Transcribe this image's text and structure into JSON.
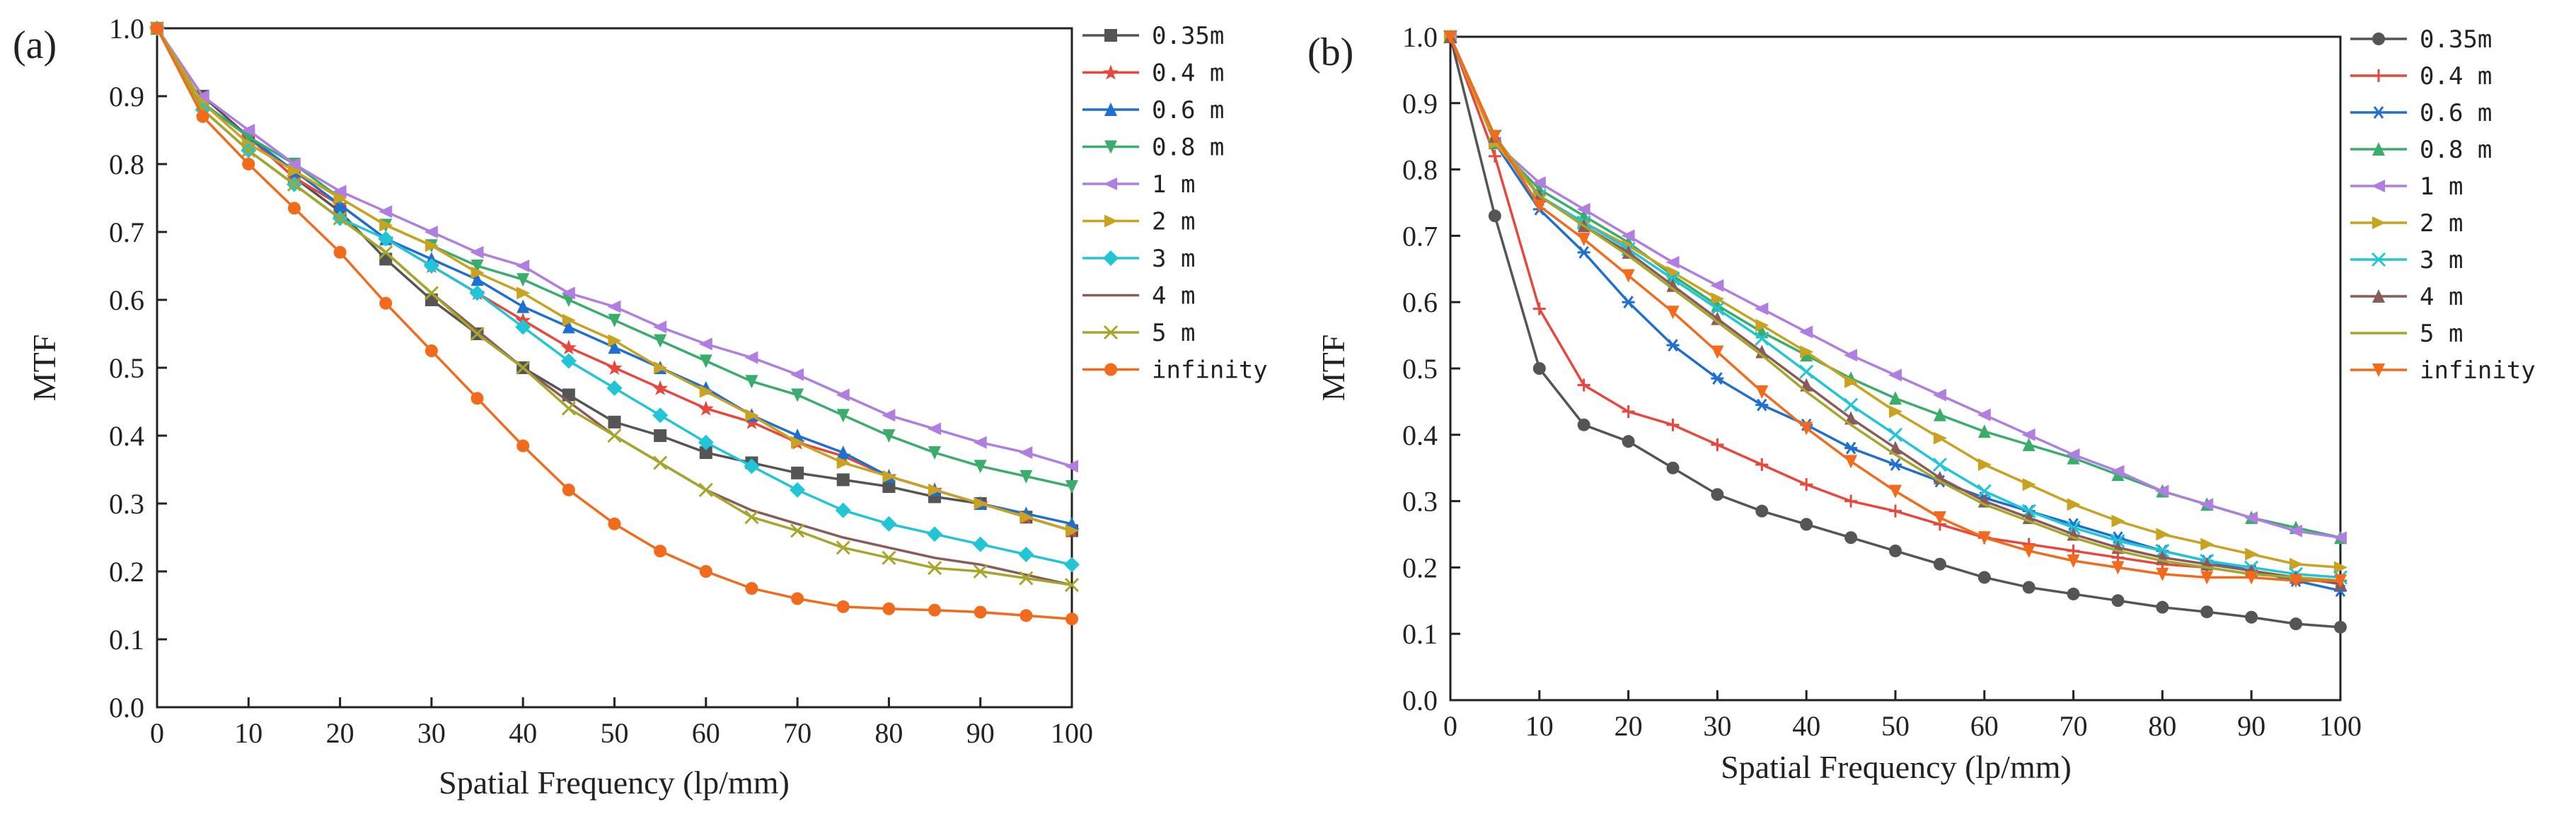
{
  "chart_data": [
    {
      "panel_label": "(a)",
      "type": "line",
      "title": "",
      "xlabel": "Spatial Frequency (lp/mm)",
      "ylabel": "MTF",
      "xlim": [
        0,
        100
      ],
      "ylim": [
        0,
        1
      ],
      "xticks": [
        "0",
        "10",
        "20",
        "30",
        "40",
        "50",
        "60",
        "70",
        "80",
        "90",
        "100"
      ],
      "yticks": [
        "0.0",
        "0.1",
        "0.2",
        "0.3",
        "0.4",
        "0.5",
        "0.6",
        "0.7",
        "0.8",
        "0.9",
        "1.0"
      ],
      "grid": false,
      "legend_position": "outside-right",
      "x": [
        0,
        5,
        10,
        15,
        20,
        25,
        30,
        35,
        40,
        45,
        50,
        55,
        60,
        65,
        70,
        75,
        80,
        85,
        90,
        95,
        100
      ],
      "series": [
        {
          "name": "0.35m",
          "color": "#555555",
          "marker": "square",
          "values": [
            1.0,
            0.9,
            0.84,
            0.78,
            0.73,
            0.66,
            0.6,
            0.55,
            0.5,
            0.46,
            0.42,
            0.4,
            0.375,
            0.36,
            0.345,
            0.335,
            0.325,
            0.31,
            0.3,
            0.28,
            0.26
          ]
        },
        {
          "name": "0.4 m",
          "color": "#e8473e",
          "marker": "star",
          "values": [
            1.0,
            0.89,
            0.84,
            0.78,
            0.74,
            0.69,
            0.65,
            0.61,
            0.57,
            0.53,
            0.5,
            0.47,
            0.44,
            0.42,
            0.39,
            0.37,
            0.34,
            0.32,
            0.3,
            0.28,
            0.26
          ]
        },
        {
          "name": "0.6 m",
          "color": "#1f6fd1",
          "marker": "triangle-up",
          "values": [
            1.0,
            0.89,
            0.84,
            0.79,
            0.74,
            0.69,
            0.66,
            0.63,
            0.59,
            0.56,
            0.53,
            0.5,
            0.47,
            0.43,
            0.4,
            0.375,
            0.34,
            0.32,
            0.3,
            0.285,
            0.27
          ]
        },
        {
          "name": "0.8 m",
          "color": "#3aad6c",
          "marker": "triangle-down",
          "values": [
            1.0,
            0.89,
            0.84,
            0.8,
            0.75,
            0.71,
            0.68,
            0.65,
            0.63,
            0.6,
            0.57,
            0.54,
            0.51,
            0.48,
            0.46,
            0.43,
            0.4,
            0.375,
            0.355,
            0.34,
            0.325
          ]
        },
        {
          "name": "1 m",
          "color": "#b07ee0",
          "marker": "triangle-left",
          "values": [
            1.0,
            0.9,
            0.85,
            0.8,
            0.76,
            0.73,
            0.7,
            0.67,
            0.65,
            0.61,
            0.59,
            0.56,
            0.535,
            0.515,
            0.49,
            0.46,
            0.43,
            0.41,
            0.39,
            0.375,
            0.355
          ]
        },
        {
          "name": "2 m",
          "color": "#c9a21f",
          "marker": "triangle-right",
          "values": [
            1.0,
            0.89,
            0.83,
            0.79,
            0.75,
            0.71,
            0.68,
            0.64,
            0.61,
            0.57,
            0.54,
            0.5,
            0.465,
            0.43,
            0.39,
            0.36,
            0.34,
            0.32,
            0.3,
            0.28,
            0.26
          ]
        },
        {
          "name": "3 m",
          "color": "#22c5d6",
          "marker": "diamond",
          "values": [
            1.0,
            0.88,
            0.82,
            0.77,
            0.72,
            0.69,
            0.65,
            0.61,
            0.56,
            0.51,
            0.47,
            0.43,
            0.39,
            0.355,
            0.32,
            0.29,
            0.27,
            0.255,
            0.24,
            0.225,
            0.21
          ]
        },
        {
          "name": "4 m",
          "color": "#8b5a5a",
          "marker": "none",
          "values": [
            1.0,
            0.88,
            0.82,
            0.77,
            0.72,
            0.67,
            0.61,
            0.555,
            0.5,
            0.45,
            0.4,
            0.36,
            0.32,
            0.29,
            0.27,
            0.25,
            0.235,
            0.22,
            0.21,
            0.195,
            0.18
          ]
        },
        {
          "name": "5 m",
          "color": "#a6a62a",
          "marker": "x",
          "values": [
            1.0,
            0.88,
            0.82,
            0.77,
            0.72,
            0.67,
            0.61,
            0.55,
            0.5,
            0.44,
            0.4,
            0.36,
            0.32,
            0.28,
            0.26,
            0.235,
            0.22,
            0.205,
            0.2,
            0.19,
            0.18
          ]
        },
        {
          "name": "infinity",
          "color": "#f26b1d",
          "marker": "circle",
          "values": [
            1.0,
            0.87,
            0.8,
            0.735,
            0.67,
            0.595,
            0.525,
            0.455,
            0.385,
            0.32,
            0.27,
            0.23,
            0.2,
            0.175,
            0.16,
            0.148,
            0.145,
            0.143,
            0.14,
            0.135,
            0.13
          ]
        }
      ]
    },
    {
      "panel_label": "(b)",
      "type": "line",
      "title": "",
      "xlabel": "Spatial Frequency (lp/mm)",
      "ylabel": "MTF",
      "xlim": [
        0,
        100
      ],
      "ylim": [
        0,
        1
      ],
      "xticks": [
        "0",
        "10",
        "20",
        "30",
        "40",
        "50",
        "60",
        "70",
        "80",
        "90",
        "100"
      ],
      "yticks": [
        "0.0",
        "0.1",
        "0.2",
        "0.3",
        "0.4",
        "0.5",
        "0.6",
        "0.7",
        "0.8",
        "0.9",
        "1.0"
      ],
      "grid": false,
      "legend_position": "outside-right",
      "x": [
        0,
        5,
        10,
        15,
        20,
        25,
        30,
        35,
        40,
        45,
        50,
        55,
        60,
        65,
        70,
        75,
        80,
        85,
        90,
        95,
        100
      ],
      "series": [
        {
          "name": "0.35m",
          "color": "#555555",
          "marker": "circle",
          "values": [
            1.0,
            0.73,
            0.5,
            0.415,
            0.39,
            0.35,
            0.31,
            0.285,
            0.265,
            0.245,
            0.225,
            0.205,
            0.185,
            0.17,
            0.16,
            0.15,
            0.14,
            0.133,
            0.125,
            0.115,
            0.11
          ]
        },
        {
          "name": "0.4 m",
          "color": "#e8473e",
          "marker": "plus",
          "values": [
            1.0,
            0.82,
            0.59,
            0.475,
            0.435,
            0.415,
            0.385,
            0.355,
            0.325,
            0.3,
            0.285,
            0.265,
            0.245,
            0.235,
            0.225,
            0.215,
            0.205,
            0.2,
            0.19,
            0.185,
            0.18
          ]
        },
        {
          "name": "0.6 m",
          "color": "#1f6fd1",
          "marker": "asterisk",
          "values": [
            1.0,
            0.84,
            0.74,
            0.675,
            0.6,
            0.535,
            0.485,
            0.445,
            0.415,
            0.38,
            0.355,
            0.33,
            0.305,
            0.285,
            0.265,
            0.245,
            0.225,
            0.21,
            0.195,
            0.18,
            0.165
          ]
        },
        {
          "name": "0.8 m",
          "color": "#3aad6c",
          "marker": "triangle-up",
          "values": [
            1.0,
            0.84,
            0.77,
            0.73,
            0.69,
            0.64,
            0.595,
            0.555,
            0.52,
            0.485,
            0.455,
            0.43,
            0.405,
            0.385,
            0.365,
            0.34,
            0.315,
            0.295,
            0.275,
            0.26,
            0.245
          ]
        },
        {
          "name": "1 m",
          "color": "#b07ee0",
          "marker": "triangle-left",
          "values": [
            1.0,
            0.84,
            0.78,
            0.74,
            0.7,
            0.66,
            0.625,
            0.59,
            0.555,
            0.52,
            0.49,
            0.46,
            0.43,
            0.4,
            0.37,
            0.345,
            0.315,
            0.295,
            0.275,
            0.255,
            0.245
          ]
        },
        {
          "name": "2 m",
          "color": "#c9a21f",
          "marker": "triangle-right",
          "values": [
            1.0,
            0.84,
            0.76,
            0.72,
            0.685,
            0.645,
            0.605,
            0.565,
            0.525,
            0.48,
            0.435,
            0.395,
            0.355,
            0.325,
            0.295,
            0.27,
            0.25,
            0.235,
            0.22,
            0.205,
            0.2
          ]
        },
        {
          "name": "3 m",
          "color": "#22c5d6",
          "marker": "x",
          "values": [
            1.0,
            0.85,
            0.76,
            0.72,
            0.68,
            0.635,
            0.59,
            0.545,
            0.495,
            0.445,
            0.4,
            0.355,
            0.315,
            0.285,
            0.26,
            0.24,
            0.225,
            0.21,
            0.2,
            0.19,
            0.185
          ]
        },
        {
          "name": "4 m",
          "color": "#8b5a5a",
          "marker": "triangle-up",
          "values": [
            1.0,
            0.85,
            0.76,
            0.715,
            0.675,
            0.625,
            0.575,
            0.525,
            0.475,
            0.425,
            0.38,
            0.335,
            0.3,
            0.275,
            0.25,
            0.23,
            0.215,
            0.205,
            0.195,
            0.185,
            0.175
          ]
        },
        {
          "name": "5 m",
          "color": "#a6a62a",
          "marker": "none",
          "values": [
            1.0,
            0.85,
            0.76,
            0.715,
            0.67,
            0.62,
            0.57,
            0.52,
            0.465,
            0.415,
            0.37,
            0.33,
            0.295,
            0.27,
            0.245,
            0.225,
            0.21,
            0.2,
            0.19,
            0.185,
            0.18
          ]
        },
        {
          "name": "infinity",
          "color": "#f26b1d",
          "marker": "triangle-down",
          "values": [
            1.0,
            0.85,
            0.745,
            0.695,
            0.64,
            0.585,
            0.525,
            0.465,
            0.41,
            0.36,
            0.315,
            0.275,
            0.245,
            0.225,
            0.21,
            0.2,
            0.19,
            0.185,
            0.185,
            0.18,
            0.18
          ]
        }
      ]
    }
  ]
}
